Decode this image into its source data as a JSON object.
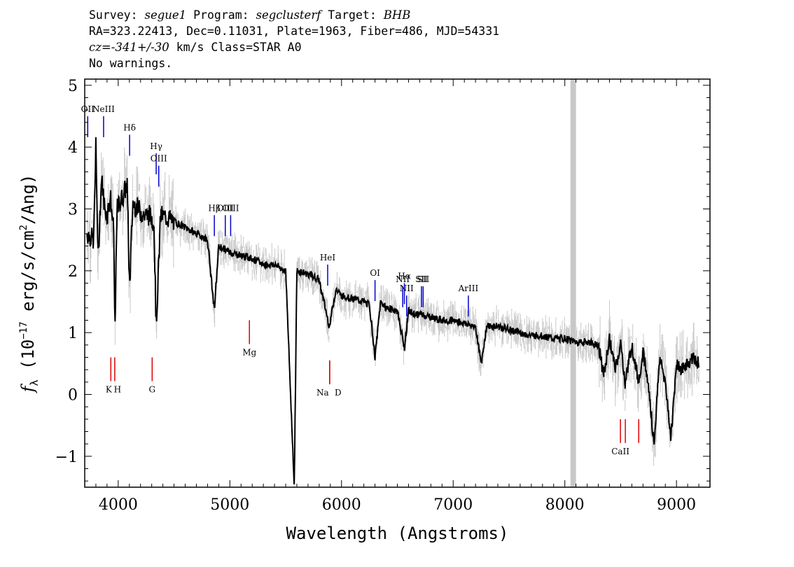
{
  "header": {
    "line1": {
      "survey_label": "Survey: ",
      "survey": "segue1",
      "program_label": " Program: ",
      "program": "segclusterf",
      "target_label": " Target: ",
      "target": "BHB"
    },
    "line2": "RA=323.22413, Dec=0.11031, Plate=1963, Fiber=486, MJD=54331",
    "line3": {
      "cz_label": "cz=",
      "cz_value": "-341+/-30",
      "rest": " km/s Class=STAR A0"
    },
    "line4": "No warnings."
  },
  "chart_data": {
    "type": "line",
    "xlabel": "Wavelength (Angstroms)",
    "ylabel": "f_λ (10^-17 erg/s/cm^2/Ang)",
    "xlim": [
      3700,
      9300
    ],
    "ylim": [
      -1.5,
      5.1
    ],
    "x_ticks": [
      4000,
      5000,
      6000,
      7000,
      8000,
      9000
    ],
    "y_ticks": [
      -1,
      0,
      1,
      2,
      3,
      4,
      5
    ],
    "masked_region": [
      8050,
      8100
    ],
    "colors": {
      "flux": "#000000",
      "error_band": "#c8c8c8",
      "emission": "#0000cc",
      "absorption": "#dd0000",
      "mask": "#c8c8c8"
    },
    "series": [
      {
        "name": "flux",
        "x": [
          3720,
          3780,
          3800,
          3820,
          3850,
          3880,
          3900,
          3930,
          3960,
          3970,
          3990,
          4040,
          4080,
          4102,
          4130,
          4180,
          4230,
          4280,
          4320,
          4340,
          4380,
          4450,
          4500,
          4600,
          4700,
          4800,
          4861,
          4900,
          4950,
          5000,
          5100,
          5200,
          5300,
          5400,
          5500,
          5577,
          5600,
          5700,
          5800,
          5890,
          5950,
          6000,
          6100,
          6200,
          6250,
          6300,
          6350,
          6400,
          6500,
          6563,
          6600,
          6650,
          6700,
          6800,
          6900,
          7000,
          7100,
          7200,
          7250,
          7300,
          7400,
          7500,
          7600,
          7700,
          7800,
          7900,
          8000,
          8100,
          8200,
          8300,
          8350,
          8400,
          8450,
          8500,
          8540,
          8600,
          8662,
          8700,
          8750,
          8800,
          8850,
          8900,
          8950,
          9000,
          9050,
          9100,
          9150,
          9200
        ],
        "y": [
          2.6,
          2.5,
          4.0,
          2.2,
          3.5,
          3.0,
          2.9,
          3.2,
          2.6,
          1.0,
          3.0,
          3.2,
          3.4,
          1.7,
          3.1,
          3.0,
          2.9,
          2.9,
          2.8,
          1.1,
          2.9,
          2.85,
          2.8,
          2.7,
          2.6,
          2.5,
          1.35,
          2.4,
          2.35,
          2.3,
          2.25,
          2.2,
          2.1,
          2.1,
          2.0,
          -1.5,
          2.0,
          1.95,
          1.85,
          1.1,
          1.7,
          1.6,
          1.55,
          1.5,
          1.45,
          0.6,
          1.5,
          1.4,
          1.35,
          0.75,
          1.35,
          1.3,
          1.3,
          1.25,
          1.2,
          1.2,
          1.15,
          1.1,
          0.5,
          1.1,
          1.1,
          1.05,
          1.0,
          0.95,
          0.95,
          0.9,
          0.9,
          0.85,
          0.85,
          0.8,
          0.3,
          0.9,
          0.4,
          0.8,
          0.2,
          0.8,
          0.2,
          0.7,
          0.1,
          -0.8,
          0.6,
          0.2,
          -0.7,
          0.5,
          0.4,
          0.5,
          0.6,
          0.5
        ]
      }
    ],
    "emission_lines": [
      {
        "label": "OII",
        "x": 3727,
        "y": 4.5
      },
      {
        "label": "NeIII",
        "x": 3869,
        "y": 4.5
      },
      {
        "label": "Hδ",
        "x": 4102,
        "y": 4.2
      },
      {
        "label": "Hγ",
        "x": 4340,
        "y": 3.9
      },
      {
        "label": "OIII",
        "x": 4363,
        "y": 3.7
      },
      {
        "label": "Hβ",
        "x": 4861,
        "y": 2.9
      },
      {
        "label": "OIII",
        "x": 4959,
        "y": 2.9
      },
      {
        "label": "OIII",
        "x": 5007,
        "y": 2.9
      },
      {
        "label": "HeI",
        "x": 5876,
        "y": 2.1
      },
      {
        "label": "OI",
        "x": 6300,
        "y": 1.85
      },
      {
        "label": "NII",
        "x": 6548,
        "y": 1.75
      },
      {
        "label": "Hα",
        "x": 6563,
        "y": 1.8
      },
      {
        "label": "NII",
        "x": 6583,
        "y": 1.6
      },
      {
        "label": "SII",
        "x": 6716,
        "y": 1.75
      },
      {
        "label": "SII",
        "x": 6731,
        "y": 1.75
      },
      {
        "label": "ArIII",
        "x": 7136,
        "y": 1.6
      }
    ],
    "absorption_lines": [
      {
        "label": "K",
        "x": 3934,
        "y": 0.6
      },
      {
        "label": "H",
        "x": 3969,
        "y": 0.6
      },
      {
        "label": "G",
        "x": 4304,
        "y": 0.6
      },
      {
        "label": "Mg",
        "x": 5175,
        "y": 1.2
      },
      {
        "label": "Na",
        "x": 5894,
        "y": 0.55
      },
      {
        "label": "D",
        "x": 5894,
        "y": 0.55
      },
      {
        "label": "CaII",
        "x": 8498,
        "y": -0.4
      },
      {
        "label": "CaII",
        "x": 8542,
        "y": -0.4
      },
      {
        "label": "CaII",
        "x": 8662,
        "y": -0.4
      }
    ]
  }
}
